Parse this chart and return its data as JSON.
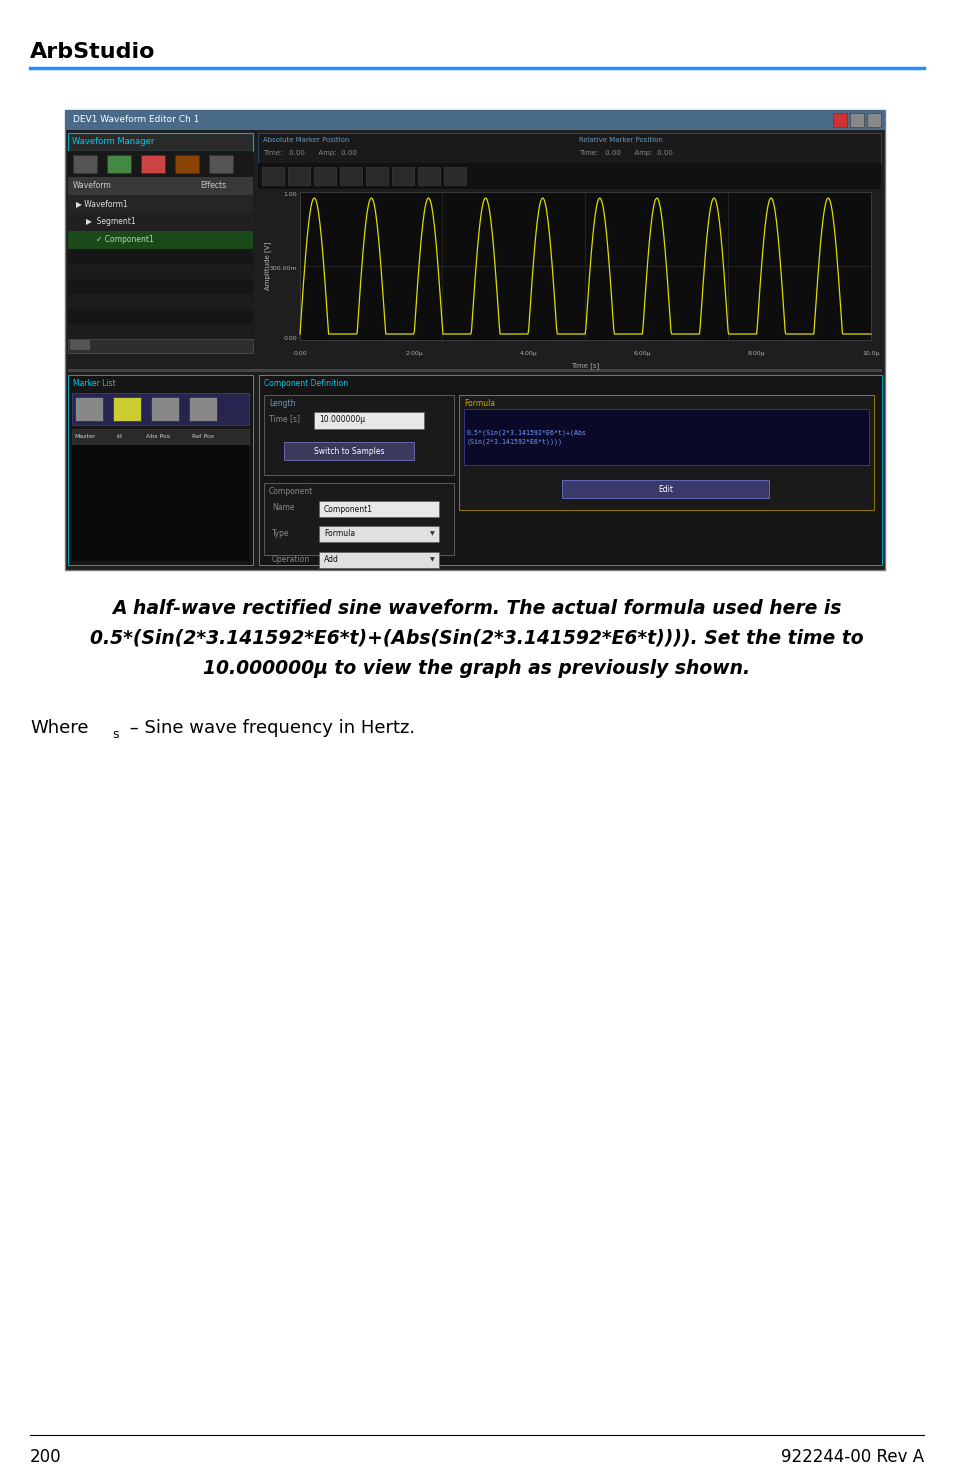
{
  "page_title": "ArbStudio",
  "header_line_color": "#1e90ff",
  "background_color": "#ffffff",
  "page_number": "200",
  "doc_number": "922244-00 Rev A",
  "caption_line1": "A half-wave rectified sine waveform. The actual formula used here is",
  "caption_line2": "0.5*(Sin(2*3.141592*E6*t)+(Abs(Sin(2*3.141592*E6*t)))). Set the time to",
  "caption_line3": "10.000000μ to view the graph as previously shown.",
  "where_text": "Where",
  "subscript_s": "s",
  "where_rest": " – Sine wave frequency in Hertz.",
  "title_fontsize": 16,
  "caption_fontsize": 13.5,
  "footer_fontsize": 12
}
